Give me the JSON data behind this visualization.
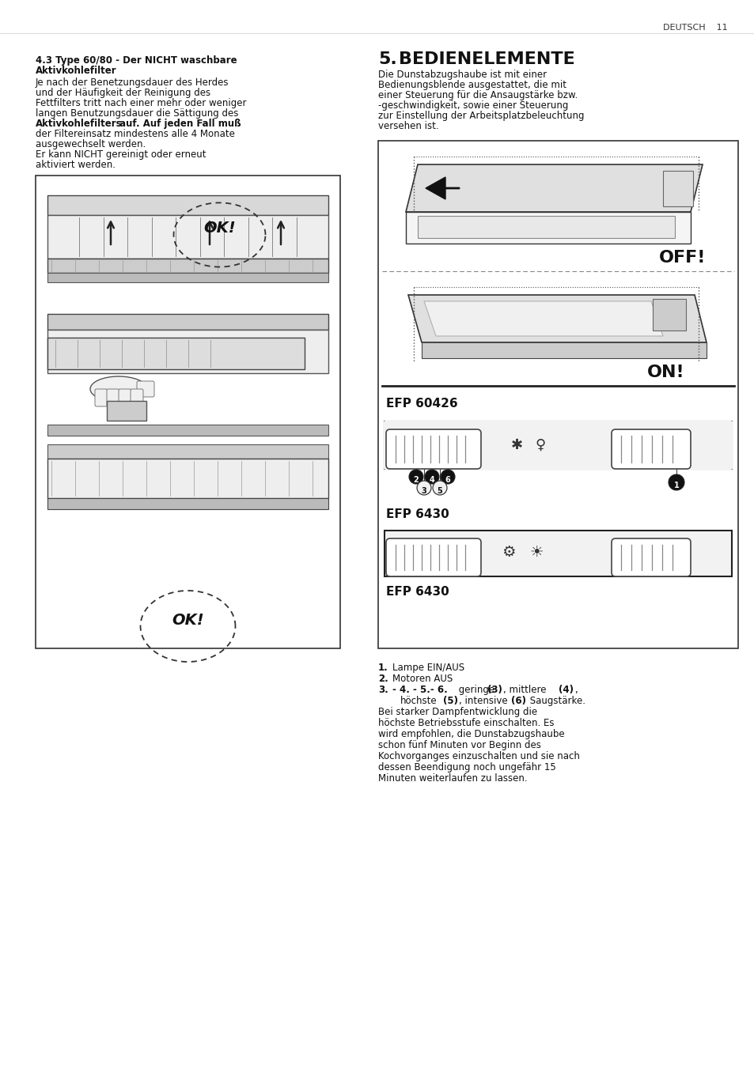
{
  "page_header": "DEUTSCH    11",
  "left_title1": "4.3 Type 60/80 - Der NICHT waschbare",
  "left_title2": "Aktivkohlefilter",
  "left_body": [
    "Je nach der Benetzungsdauer des Herdes",
    "und der Häufigkeit der Reinigung des",
    "Fettfilters tritt nach einer mehr oder weniger",
    "langen Benutzungsdauer die Sättigung des",
    "Aktivkohlefilters",
    " auf. Auf jeden Fall muß",
    "der Filtereinsatz mindestens alle 4 Monate",
    "ausgewechselt werden.",
    "Er kann NICHT gereinigt oder erneut",
    "aktiviert werden."
  ],
  "right_title_num": "5.",
  "right_title": "BEDIENELEMENTE",
  "right_body": [
    "Die Dunstabzugshaube ist mit einer",
    "Bedienungsblende ausgestattet, die mit",
    "einer Steuerung für die Ansaugstärke bzw.",
    "-geschwindigkeit, sowie einer Steuerung",
    "zur Einstellung der Arbeitsplatzbeleuchtung",
    "versehen ist."
  ],
  "label_off": "OFF!",
  "label_on": "ON!",
  "label_efp1": "EFP 60426",
  "label_efp2": "EFP 6430",
  "list1_num": "1.",
  "list1_text": "Lampe EIN/AUS",
  "list2_num": "2.",
  "list2_text": "Motoren AUS",
  "list3_num": "3.",
  "list3_bold": "- 4. - 5.- 6.",
  "list3_text1": " geringe ",
  "list3_b3": "(3)",
  "list3_text2": ", mittlere ",
  "list3_b4": "(4)",
  "list3_indent": "    höchste ",
  "list3_b5": "(5)",
  "list3_text3": ", intensive ",
  "list3_b6": "(6)",
  "list3_text4": " Saugstärke.",
  "list_rest": [
    "Bei starker Dampfentwicklung die",
    "höchste Betriebsstufe einschalten. Es",
    "wird empfohlen, die Dunstabzugshaube",
    "schon fünf Minuten vor Beginn des",
    "Kochvorganges einzuschalten und sie nach",
    "dessen Beendigung noch ungefähr 15",
    "Minuten weiterlaufen zu lassen."
  ],
  "bg": "#ffffff",
  "black": "#111111",
  "gray": "#cccccc",
  "lgray": "#e8e8e8",
  "mgray": "#aaaaaa"
}
